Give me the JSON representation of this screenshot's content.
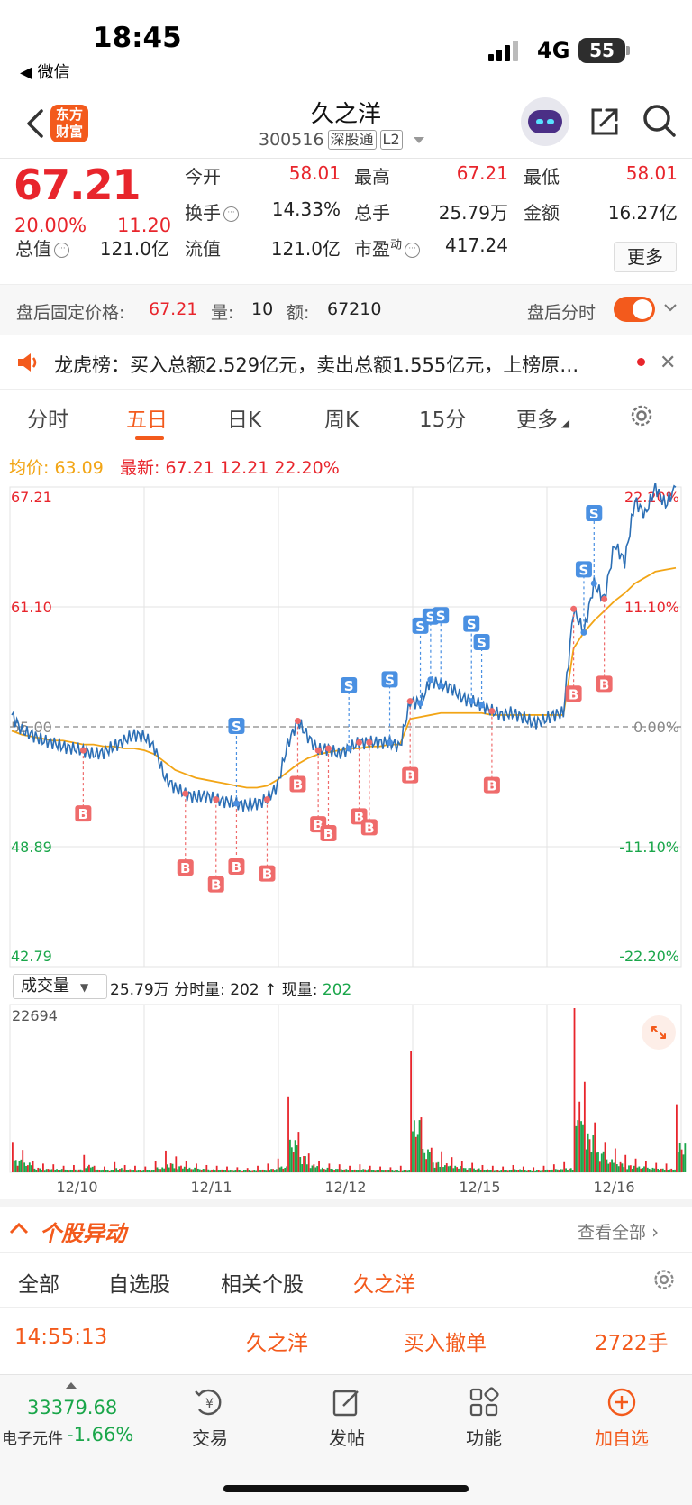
{
  "status_bar": {
    "time": "18:45",
    "back_app": "◀ 微信",
    "network": "4G",
    "battery": "55"
  },
  "header": {
    "logo": "东方财富",
    "stock_name": "久之洋",
    "stock_code": "300516",
    "tag1": "深股通",
    "tag2": "L2"
  },
  "quote": {
    "price": "67.21",
    "change_pct": "20.00%",
    "change": "11.20",
    "rows": [
      [
        {
          "label": "今开",
          "value": "58.01",
          "color": "red"
        },
        {
          "label": "最高",
          "value": "67.21",
          "color": "red"
        },
        {
          "label": "最低",
          "value": "58.01",
          "color": "red"
        }
      ],
      [
        {
          "label": "换手",
          "value": "14.33%",
          "color": "dark"
        },
        {
          "label": "总手",
          "value": "25.79万",
          "color": "dark"
        },
        {
          "label": "金额",
          "value": "16.27亿",
          "color": "dark"
        }
      ],
      [
        {
          "label": "总值",
          "value": "121.0亿",
          "color": "dark"
        },
        {
          "label": "流值",
          "value": "121.0亿",
          "color": "dark"
        },
        {
          "label": "市盈",
          "value": "417.24",
          "color": "dark"
        }
      ]
    ],
    "pe_sup": "动",
    "more_label": "更多"
  },
  "after_hours": {
    "label": "盘后固定价格:",
    "price": "67.21",
    "vol_label": "量:",
    "vol": "10",
    "amt_label": "额:",
    "amt": "67210",
    "timeshare_label": "盘后分时"
  },
  "notice": {
    "text": "龙虎榜：买入总额2.529亿元，卖出总额1.555亿元，上榜原…"
  },
  "tabs": [
    "分时",
    "五日",
    "日K",
    "周K",
    "15分",
    "更多"
  ],
  "active_tab": "五日",
  "chart_legend": {
    "avg_label": "均价:",
    "avg_value": "63.09",
    "latest_label": "最新:",
    "latest_value": "67.21",
    "latest_change": "12.21",
    "latest_pct": "22.20%"
  },
  "chart_data": {
    "type": "line",
    "y_left_ticks": [
      "67.21",
      "61.10",
      "55.00",
      "48.89",
      "42.79"
    ],
    "y_right_ticks": [
      "22.20%",
      "11.10%",
      "0.00%",
      "-11.10%",
      "-22.20%"
    ],
    "ylim": [
      42.79,
      67.21
    ],
    "prev_close": 55.0,
    "x_labels": [
      "12/10",
      "12/11",
      "12/12",
      "12/15",
      "12/16"
    ],
    "series": [
      {
        "name": "price",
        "values": [
          55.6,
          54.8,
          54.6,
          54.3,
          54.2,
          54.0,
          53.9,
          53.8,
          53.6,
          53.7,
          54.0,
          54.3,
          54.6,
          54.5,
          53.9,
          52.4,
          51.9,
          51.6,
          51.4,
          51.5,
          51.3,
          51.2,
          51.1,
          51.0,
          51.1,
          51.3,
          52.0,
          54.1,
          55.3,
          54.5,
          53.8,
          53.9,
          53.6,
          53.9,
          54.2,
          54.2,
          54.2,
          54.2,
          54.0,
          56.3,
          56.2,
          57.4,
          57.1,
          57.0,
          56.5,
          56.3,
          56.1,
          55.8,
          55.6,
          55.7,
          55.5,
          55.2,
          55.3,
          55.6,
          55.7,
          61.0,
          59.8,
          62.3,
          61.5,
          64.3,
          63.4,
          66.5,
          65.8,
          67.2,
          66.3,
          67.2
        ]
      },
      {
        "name": "avg",
        "values": [
          54.8,
          54.6,
          54.5,
          54.4,
          54.3,
          54.3,
          54.2,
          54.1,
          54.1,
          54.0,
          54.0,
          53.9,
          53.9,
          53.8,
          53.6,
          53.2,
          52.8,
          52.6,
          52.4,
          52.3,
          52.2,
          52.1,
          52.0,
          51.9,
          51.9,
          52.0,
          52.3,
          52.7,
          53.1,
          53.4,
          53.6,
          53.7,
          53.8,
          53.9,
          53.9,
          54.0,
          54.0,
          54.1,
          54.1,
          55.4,
          55.5,
          55.6,
          55.7,
          55.7,
          55.7,
          55.7,
          55.7,
          55.6,
          55.6,
          55.6,
          55.6,
          55.6,
          55.6,
          55.6,
          55.6,
          59.0,
          59.8,
          60.4,
          60.9,
          61.4,
          61.8,
          62.3,
          62.6,
          62.9,
          63.0,
          63.09
        ]
      }
    ],
    "volume_max": "22694",
    "volume": [
      4200,
      3100,
      1500,
      1200,
      1100,
      900,
      1000,
      2400,
      900,
      800,
      1400,
      1000,
      900,
      800,
      1600,
      3000,
      2200,
      1500,
      1200,
      1000,
      900,
      800,
      700,
      600,
      900,
      1200,
      1900,
      10500,
      5600,
      2600,
      1500,
      1200,
      1100,
      900,
      1100,
      900,
      800,
      700,
      900,
      16800,
      7600,
      3400,
      2900,
      2100,
      1500,
      1300,
      1000,
      900,
      800,
      1000,
      800,
      700,
      900,
      1100,
      1400,
      22694,
      12500,
      6900,
      4200,
      3300,
      2400,
      1900,
      1500,
      1300,
      1200,
      9400
    ],
    "markers": [
      {
        "t": "B",
        "i": 7
      },
      {
        "t": "B",
        "i": 17
      },
      {
        "t": "B",
        "i": 20
      },
      {
        "t": "B",
        "i": 22
      },
      {
        "t": "B",
        "i": 25
      },
      {
        "t": "S",
        "i": 22
      },
      {
        "t": "B",
        "i": 28
      },
      {
        "t": "B",
        "i": 30
      },
      {
        "t": "B",
        "i": 31
      },
      {
        "t": "S",
        "i": 33
      },
      {
        "t": "B",
        "i": 34
      },
      {
        "t": "B",
        "i": 35
      },
      {
        "t": "S",
        "i": 37
      },
      {
        "t": "B",
        "i": 39
      },
      {
        "t": "S",
        "i": 40
      },
      {
        "t": "S",
        "i": 41
      },
      {
        "t": "S",
        "i": 42
      },
      {
        "t": "S",
        "i": 45
      },
      {
        "t": "S",
        "i": 46
      },
      {
        "t": "B",
        "i": 47
      },
      {
        "t": "B",
        "i": 55
      },
      {
        "t": "S",
        "i": 56
      },
      {
        "t": "S",
        "i": 57
      },
      {
        "t": "B",
        "i": 58
      }
    ]
  },
  "volume_panel": {
    "selector": "成交量",
    "total": "25.79万",
    "tick_label": "分时量:",
    "tick_value": "202",
    "arrow": "↑",
    "now_label": "现量:",
    "now_value": "202"
  },
  "movers": {
    "title": "个股异动",
    "view_all": "查看全部",
    "subtabs": [
      "全部",
      "自选股",
      "相关个股",
      "久之洋"
    ],
    "active_subtab": "久之洋",
    "row": {
      "time": "14:55:13",
      "name": "久之洋",
      "action": "买入撤单",
      "amount": "2722手"
    }
  },
  "bottom_nav": {
    "index_value": "33379.68",
    "index_name": "电子元件",
    "index_pct": "-1.66%",
    "items": [
      {
        "label": "交易",
        "icon": "trade-icon"
      },
      {
        "label": "发帖",
        "icon": "post-icon"
      },
      {
        "label": "功能",
        "icon": "apps-icon"
      },
      {
        "label": "加自选",
        "icon": "add-watch-icon"
      }
    ]
  }
}
